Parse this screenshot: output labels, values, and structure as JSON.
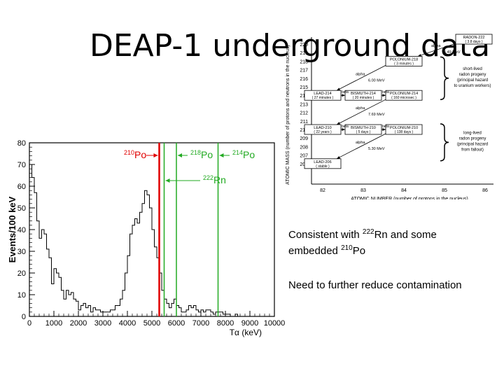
{
  "slide": {
    "title": "DEAP-1 underground data",
    "text_consistent_prefix": "Consistent with ",
    "text_rn_mass": "222",
    "text_rn_sym": "Rn and some",
    "text_embedded": "embedded ",
    "text_po_mass": "210",
    "text_po_sym": "Po",
    "text_reduce": "Need to further reduce contamination"
  },
  "chart_data": [
    {
      "type": "histogram",
      "title": "",
      "xlabel": "Tα (keV)",
      "ylabel": "Events/100 keV",
      "xlim": [
        0,
        10000
      ],
      "ylim": [
        0,
        80
      ],
      "xticks": [
        "0",
        "1000",
        "2000",
        "3000",
        "4000",
        "5000",
        "6000",
        "7000",
        "8000",
        "9000",
        "10000"
      ],
      "yticks": [
        "0",
        "10",
        "20",
        "30",
        "40",
        "50",
        "60",
        "70",
        "80"
      ],
      "bin_width_kev": 100,
      "x": [
        0,
        100,
        200,
        300,
        400,
        500,
        600,
        700,
        800,
        900,
        1000,
        1100,
        1200,
        1300,
        1400,
        1500,
        1600,
        1700,
        1800,
        1900,
        2000,
        2100,
        2200,
        2300,
        2400,
        2500,
        2600,
        2700,
        2800,
        2900,
        3000,
        3100,
        3200,
        3300,
        3400,
        3500,
        3600,
        3700,
        3800,
        3900,
        4000,
        4100,
        4200,
        4300,
        4400,
        4500,
        4600,
        4700,
        4800,
        4900,
        5000,
        5100,
        5200,
        5300,
        5400,
        5500,
        5600,
        5700,
        5800,
        5900,
        6000,
        6100,
        6200,
        6300,
        6400,
        6500,
        6600,
        6700,
        6800,
        6900,
        7000,
        7100,
        7200,
        7300,
        7400,
        7500,
        7600,
        7700,
        7800,
        7900,
        8000,
        8100,
        8200,
        8300,
        8400,
        8500,
        8600,
        8700,
        8800,
        8900,
        9000,
        9100,
        9200,
        9300,
        9400,
        9500,
        9600,
        9700,
        9800,
        9900
      ],
      "y": [
        70,
        64,
        57,
        44,
        36,
        40,
        38,
        31,
        27,
        15,
        22,
        20,
        18,
        12,
        8,
        12,
        10,
        11,
        8,
        7,
        3,
        5,
        6,
        4,
        5,
        2,
        4,
        3,
        3,
        2,
        2,
        2,
        2,
        3,
        3,
        5,
        5,
        8,
        12,
        20,
        28,
        38,
        42,
        45,
        43,
        48,
        52,
        58,
        56,
        50,
        40,
        32,
        27,
        20,
        12,
        8,
        6,
        4,
        6,
        8,
        5,
        4,
        2,
        2,
        3,
        5,
        4,
        5,
        3,
        2,
        3,
        2,
        3,
        3,
        2,
        1,
        2,
        2,
        2,
        1,
        1,
        1,
        0,
        0,
        1,
        0,
        0,
        0,
        0,
        0,
        0,
        0,
        0,
        0,
        0,
        0,
        0,
        0,
        0,
        0
      ],
      "peak_markers": [
        {
          "mass": "210",
          "symbol": "Po",
          "energy_kev": 5300,
          "color": "#e00000"
        },
        {
          "mass": "222",
          "symbol": "Rn",
          "energy_kev": 5500,
          "color": "#22aa22"
        },
        {
          "mass": "218",
          "symbol": "Po",
          "energy_kev": 6000,
          "color": "#22aa22"
        },
        {
          "mass": "214",
          "symbol": "Po",
          "energy_kev": 7700,
          "color": "#22aa22"
        }
      ]
    },
    {
      "type": "decay-chain",
      "xlabel": "ATOMIC NUMBER (number of protons in the nucleus)",
      "ylabel": "ATOMIC MASS (number of protons and neutrons in the nucleus)",
      "yticks": [
        "220",
        "219",
        "218",
        "217",
        "216",
        "215",
        "214",
        "213",
        "212",
        "211",
        "210",
        "209",
        "208",
        "207",
        "206"
      ],
      "xticks": [
        "82",
        "83",
        "84",
        "85",
        "86"
      ],
      "nuclides": [
        {
          "name": "RADON-222",
          "halflife": "( 3.8 days )",
          "z": 86,
          "a": 222
        },
        {
          "name": "POLONIUM-218",
          "halflife": "( 3 minutes )",
          "z": 84,
          "a": 218
        },
        {
          "name": "LEAD-214",
          "halflife": "( 27 minutes )",
          "z": 82,
          "a": 214
        },
        {
          "name": "BISMUTH-214",
          "halflife": "( 20 minutes )",
          "z": 83,
          "a": 214
        },
        {
          "name": "POLONIUM-214",
          "halflife": "( 160 microsec )",
          "z": 84,
          "a": 214
        },
        {
          "name": "LEAD-210",
          "halflife": "( 22 years )",
          "z": 82,
          "a": 210
        },
        {
          "name": "BISMUTH-210",
          "halflife": "( 5 days )",
          "z": 83,
          "a": 210
        },
        {
          "name": "POLONIUM-210",
          "halflife": "( 138 days )",
          "z": 84,
          "a": 210
        },
        {
          "name": "LEAD-206",
          "halflife": "( stable )",
          "z": 82,
          "a": 206
        }
      ],
      "alpha_labels": [
        {
          "label": "alpha",
          "energy": "5.49 MeV"
        },
        {
          "label": "alpha",
          "energy": "6.00 MeV"
        },
        {
          "label": "alpha",
          "energy": "7.69 MeV"
        },
        {
          "label": "alpha",
          "energy": "5.30 MeV"
        }
      ],
      "beta_label": "beta",
      "groups": [
        {
          "lines": [
            "short-lived",
            "radon progeny",
            "(principal hazard",
            "to uranium workers)"
          ]
        },
        {
          "lines": [
            "long-lived",
            "radon progeny",
            "(principal hazard",
            "from fallout)"
          ]
        }
      ]
    }
  ]
}
